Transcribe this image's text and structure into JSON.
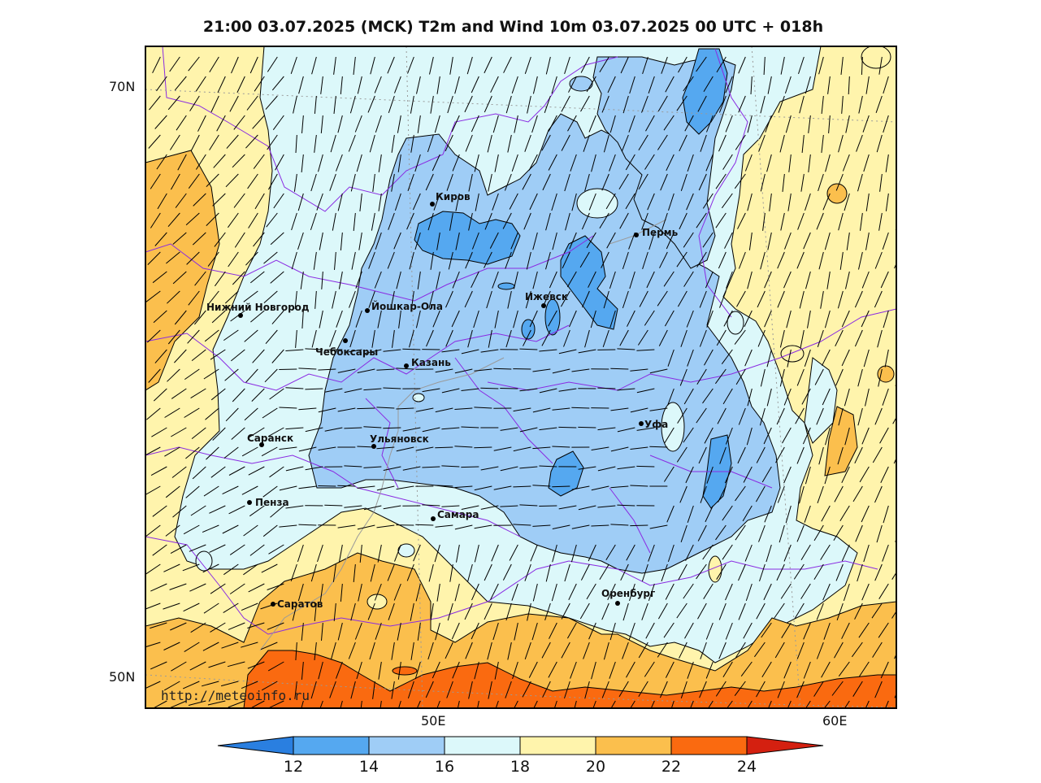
{
  "title": "21:00 03.07.2025 (MCK) T2m and Wind 10m 03.07.2025 00 UTC + 018h",
  "axes": {
    "lat_labels": [
      "70N",
      "50N"
    ],
    "lon_labels": [
      "50E",
      "60E"
    ]
  },
  "cities": [
    {
      "name": "Киров"
    },
    {
      "name": "Пермь"
    },
    {
      "name": "Нижний Новгород"
    },
    {
      "name": "Йошкар-Ола"
    },
    {
      "name": "Ижевск"
    },
    {
      "name": "Чебоксары"
    },
    {
      "name": "Казань"
    },
    {
      "name": "Уфа"
    },
    {
      "name": "Саранск"
    },
    {
      "name": "Ульяновск"
    },
    {
      "name": "Пенза"
    },
    {
      "name": "Самара"
    },
    {
      "name": "Оренбург"
    },
    {
      "name": "Саратов"
    }
  ],
  "colorbar": {
    "ticks": [
      "12",
      "14",
      "16",
      "18",
      "20",
      "22",
      "24"
    ],
    "colors": [
      "#2a7fe0",
      "#55a8f0",
      "#9fcdf6",
      "#dcf8fa",
      "#fff4ac",
      "#fbbf4d",
      "#fa6a10",
      "#d42010"
    ]
  },
  "watermark": "http://meteoinfo.ru",
  "palette": {
    "c12": "#55a8f0",
    "c14": "#9fcdf6",
    "c16": "#dcf8fa",
    "c18": "#fff4ac",
    "c20": "#fbbf4d",
    "c22": "#fa6a10",
    "border": "#8a2be2"
  }
}
